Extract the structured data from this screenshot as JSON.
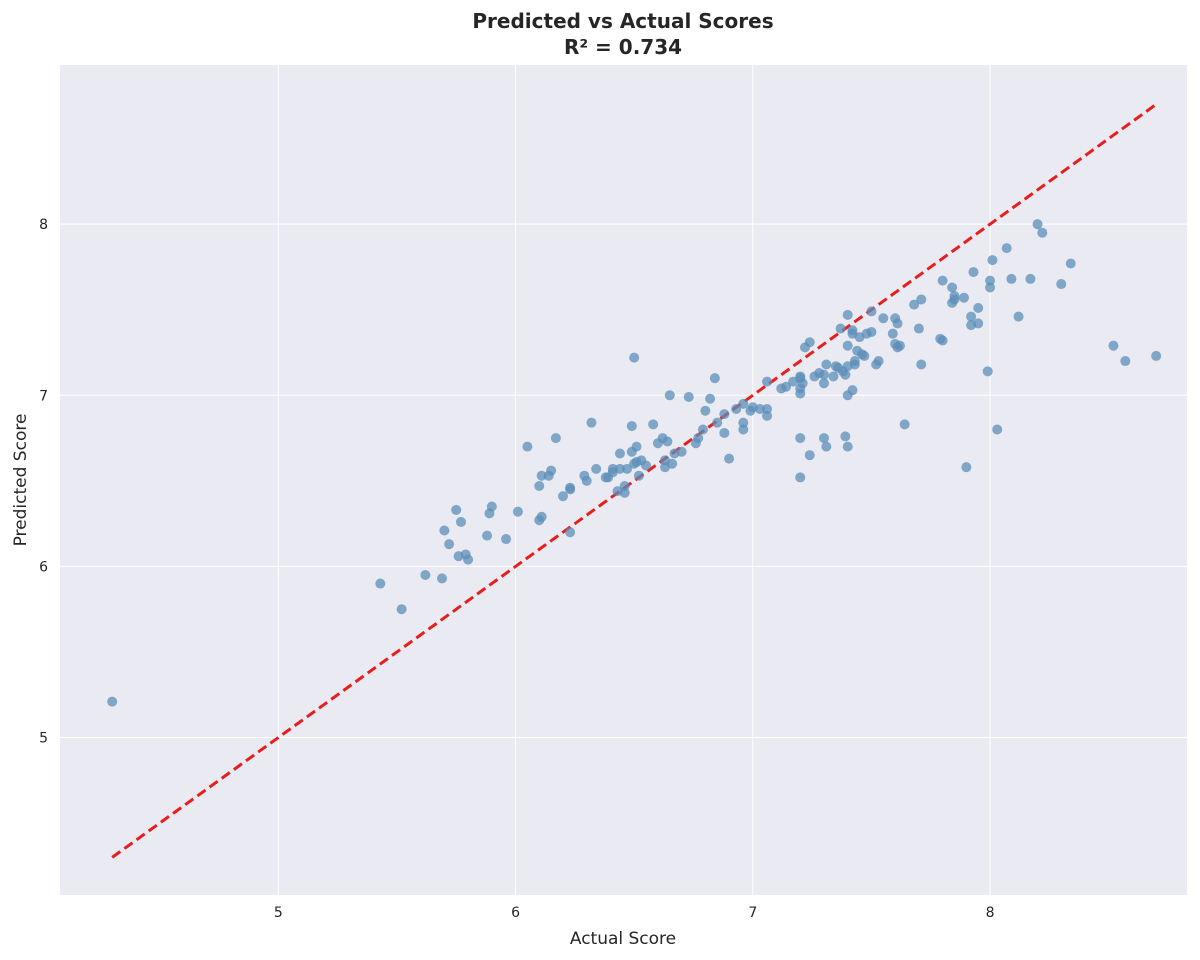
{
  "chart_data": {
    "type": "scatter",
    "title": "Predicted vs Actual Scores",
    "subtitle": "R² = 0.734",
    "xlabel": "Actual Score",
    "ylabel": "Predicted Score",
    "xlim": [
      4.08,
      8.83
    ],
    "ylim": [
      4.08,
      8.93
    ],
    "xticks": [
      5,
      6,
      7,
      8
    ],
    "yticks": [
      5,
      6,
      7,
      8
    ],
    "grid": true,
    "colors": {
      "background": "#eaeaf2",
      "grid": "#ffffff",
      "points": "#5b8db8",
      "reference_line": "#e81e1e"
    },
    "reference_line": {
      "style": "dashed",
      "x": [
        4.3,
        8.7
      ],
      "y": [
        4.3,
        8.7
      ]
    },
    "points": [
      [
        4.3,
        5.21
      ],
      [
        5.43,
        5.9
      ],
      [
        5.52,
        5.75
      ],
      [
        5.62,
        5.95
      ],
      [
        5.69,
        5.93
      ],
      [
        5.7,
        6.21
      ],
      [
        5.72,
        6.13
      ],
      [
        5.75,
        6.33
      ],
      [
        5.77,
        6.26
      ],
      [
        5.76,
        6.06
      ],
      [
        5.79,
        6.07
      ],
      [
        5.8,
        6.04
      ],
      [
        5.88,
        6.18
      ],
      [
        5.89,
        6.31
      ],
      [
        5.9,
        6.35
      ],
      [
        5.96,
        6.16
      ],
      [
        6.01,
        6.32
      ],
      [
        6.05,
        6.7
      ],
      [
        6.1,
        6.47
      ],
      [
        6.1,
        6.27
      ],
      [
        6.11,
        6.53
      ],
      [
        6.11,
        6.29
      ],
      [
        6.14,
        6.53
      ],
      [
        6.15,
        6.56
      ],
      [
        6.17,
        6.75
      ],
      [
        6.2,
        6.41
      ],
      [
        6.23,
        6.45
      ],
      [
        6.23,
        6.46
      ],
      [
        6.23,
        6.2
      ],
      [
        6.29,
        6.53
      ],
      [
        6.3,
        6.5
      ],
      [
        6.32,
        6.84
      ],
      [
        6.34,
        6.57
      ],
      [
        6.38,
        6.52
      ],
      [
        6.39,
        6.52
      ],
      [
        6.41,
        6.55
      ],
      [
        6.41,
        6.57
      ],
      [
        6.43,
        6.44
      ],
      [
        6.44,
        6.57
      ],
      [
        6.44,
        6.66
      ],
      [
        6.46,
        6.47
      ],
      [
        6.46,
        6.43
      ],
      [
        6.47,
        6.57
      ],
      [
        6.49,
        6.82
      ],
      [
        6.49,
        6.67
      ],
      [
        6.5,
        6.6
      ],
      [
        6.51,
        6.7
      ],
      [
        6.51,
        6.61
      ],
      [
        6.52,
        6.53
      ],
      [
        6.5,
        7.22
      ],
      [
        6.53,
        6.62
      ],
      [
        6.55,
        6.59
      ],
      [
        6.58,
        6.83
      ],
      [
        6.6,
        6.72
      ],
      [
        6.62,
        6.75
      ],
      [
        6.63,
        6.62
      ],
      [
        6.63,
        6.58
      ],
      [
        6.64,
        6.73
      ],
      [
        6.65,
        7.0
      ],
      [
        6.66,
        6.6
      ],
      [
        6.67,
        6.66
      ],
      [
        6.7,
        6.67
      ],
      [
        6.73,
        6.99
      ],
      [
        6.76,
        6.72
      ],
      [
        6.77,
        6.75
      ],
      [
        6.79,
        6.8
      ],
      [
        6.8,
        6.91
      ],
      [
        6.82,
        6.98
      ],
      [
        6.84,
        7.1
      ],
      [
        6.85,
        6.84
      ],
      [
        6.88,
        6.78
      ],
      [
        6.88,
        6.89
      ],
      [
        6.9,
        6.63
      ],
      [
        6.93,
        6.92
      ],
      [
        6.96,
        6.95
      ],
      [
        6.96,
        6.84
      ],
      [
        6.96,
        6.8
      ],
      [
        6.99,
        6.91
      ],
      [
        7.0,
        6.93
      ],
      [
        7.03,
        6.92
      ],
      [
        7.06,
        6.88
      ],
      [
        7.06,
        6.92
      ],
      [
        7.06,
        7.08
      ],
      [
        7.12,
        7.04
      ],
      [
        7.14,
        7.05
      ],
      [
        7.17,
        7.08
      ],
      [
        7.2,
        7.1
      ],
      [
        7.2,
        7.11
      ],
      [
        7.2,
        7.04
      ],
      [
        7.2,
        7.01
      ],
      [
        7.21,
        7.07
      ],
      [
        7.22,
        7.28
      ],
      [
        7.24,
        7.31
      ],
      [
        7.2,
        6.75
      ],
      [
        7.2,
        6.52
      ],
      [
        7.24,
        6.65
      ],
      [
        7.26,
        7.11
      ],
      [
        7.28,
        7.13
      ],
      [
        7.3,
        7.12
      ],
      [
        7.3,
        7.07
      ],
      [
        7.31,
        7.18
      ],
      [
        7.3,
        6.75
      ],
      [
        7.31,
        6.7
      ],
      [
        7.34,
        7.11
      ],
      [
        7.35,
        7.17
      ],
      [
        7.36,
        7.16
      ],
      [
        7.37,
        7.39
      ],
      [
        7.38,
        7.14
      ],
      [
        7.39,
        7.12
      ],
      [
        7.39,
        6.76
      ],
      [
        7.4,
        6.7
      ],
      [
        7.4,
        7.17
      ],
      [
        7.4,
        7.29
      ],
      [
        7.4,
        7.47
      ],
      [
        7.4,
        7.0
      ],
      [
        7.42,
        7.36
      ],
      [
        7.42,
        7.03
      ],
      [
        7.42,
        7.38
      ],
      [
        7.43,
        7.18
      ],
      [
        7.43,
        7.2
      ],
      [
        7.44,
        7.26
      ],
      [
        7.45,
        7.34
      ],
      [
        7.46,
        7.24
      ],
      [
        7.47,
        7.23
      ],
      [
        7.48,
        7.36
      ],
      [
        7.5,
        7.37
      ],
      [
        7.5,
        7.49
      ],
      [
        7.52,
        7.18
      ],
      [
        7.53,
        7.2
      ],
      [
        7.55,
        7.45
      ],
      [
        7.59,
        7.36
      ],
      [
        7.6,
        7.45
      ],
      [
        7.6,
        7.3
      ],
      [
        7.61,
        7.42
      ],
      [
        7.61,
        7.28
      ],
      [
        7.62,
        7.29
      ],
      [
        7.64,
        6.83
      ],
      [
        7.68,
        7.53
      ],
      [
        7.7,
        7.39
      ],
      [
        7.71,
        7.18
      ],
      [
        7.71,
        7.56
      ],
      [
        7.79,
        7.33
      ],
      [
        7.8,
        7.67
      ],
      [
        7.8,
        7.32
      ],
      [
        7.84,
        7.63
      ],
      [
        7.84,
        7.54
      ],
      [
        7.85,
        7.56
      ],
      [
        7.85,
        7.58
      ],
      [
        7.89,
        7.57
      ],
      [
        7.9,
        6.58
      ],
      [
        7.92,
        7.41
      ],
      [
        7.92,
        7.46
      ],
      [
        7.93,
        7.72
      ],
      [
        7.95,
        7.42
      ],
      [
        7.95,
        7.51
      ],
      [
        7.99,
        7.14
      ],
      [
        8.0,
        7.63
      ],
      [
        8.0,
        7.67
      ],
      [
        8.01,
        7.79
      ],
      [
        8.03,
        6.8
      ],
      [
        8.07,
        7.86
      ],
      [
        8.09,
        7.68
      ],
      [
        8.12,
        7.46
      ],
      [
        8.17,
        7.68
      ],
      [
        8.2,
        8.0
      ],
      [
        8.22,
        7.95
      ],
      [
        8.3,
        7.65
      ],
      [
        8.34,
        7.77
      ],
      [
        8.52,
        7.29
      ],
      [
        8.57,
        7.2
      ],
      [
        8.7,
        7.23
      ]
    ]
  }
}
